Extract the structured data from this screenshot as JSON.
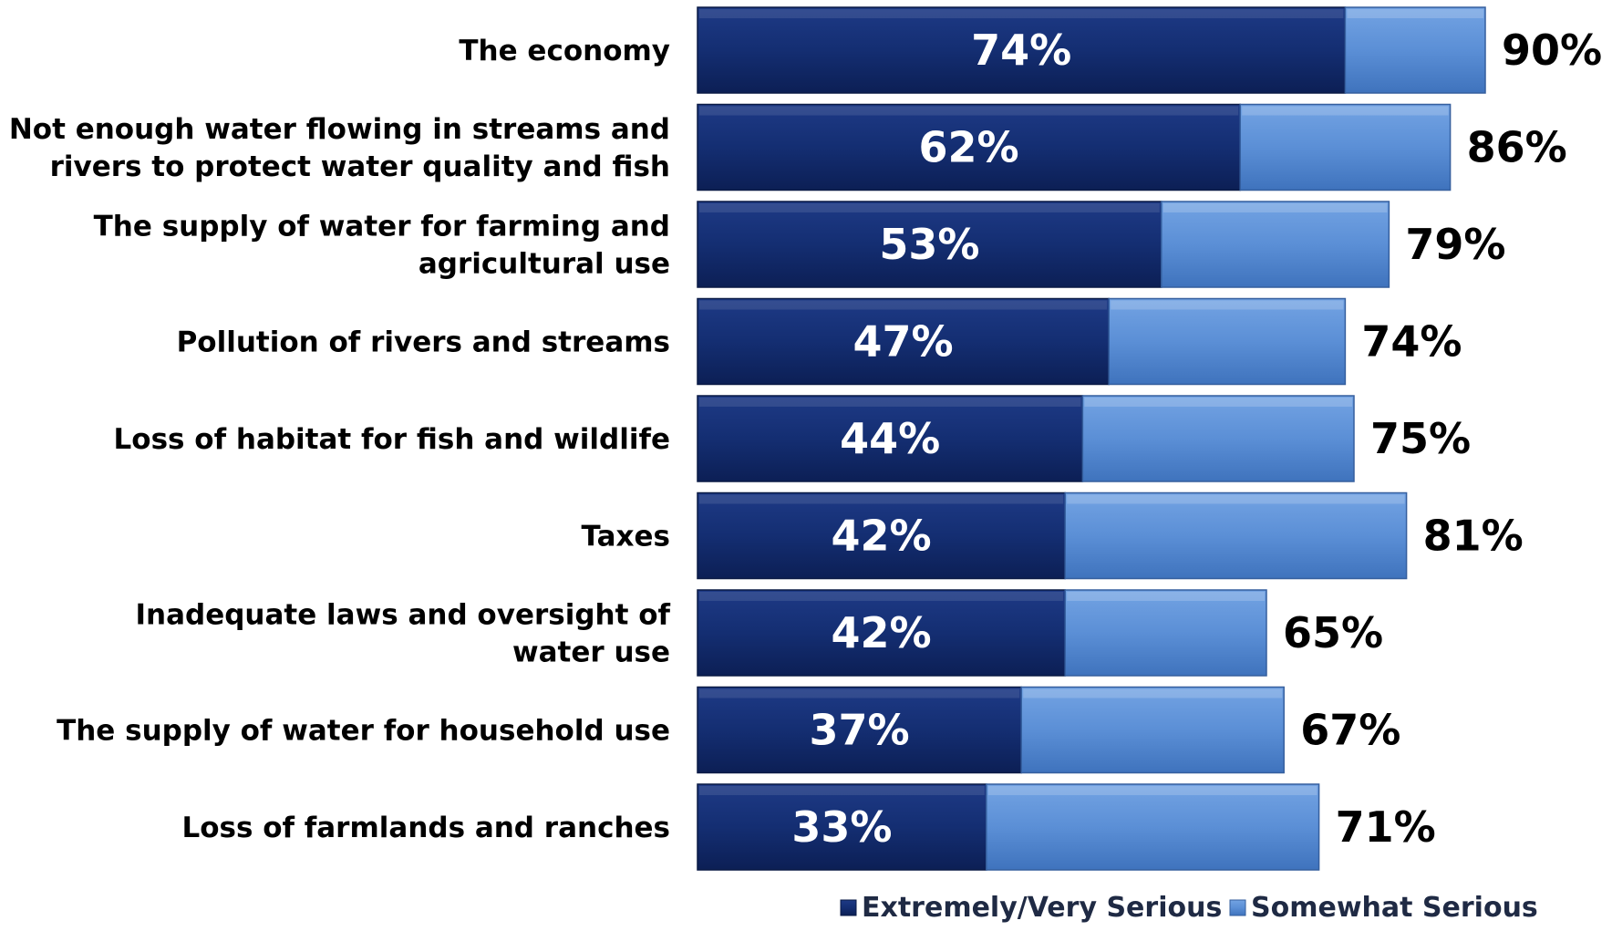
{
  "chart_data": {
    "type": "bar",
    "orientation": "horizontal",
    "stacked": true,
    "categories": [
      [
        "The economy"
      ],
      [
        "Not enough water flowing in streams and",
        "rivers to protect water quality and fish"
      ],
      [
        "The supply of water for farming and",
        "agricultural use"
      ],
      [
        "Pollution of rivers and streams"
      ],
      [
        "Loss of habitat for fish and wildlife"
      ],
      [
        "Taxes"
      ],
      [
        "Inadequate laws and oversight of",
        "water use"
      ],
      [
        "The supply of water for household use"
      ],
      [
        "Loss of farmlands and ranches"
      ]
    ],
    "series": [
      {
        "name": "Extremely/Very Serious",
        "color": "#13296b",
        "values": [
          74,
          62,
          53,
          47,
          44,
          42,
          42,
          37,
          33
        ],
        "labels": [
          "74%",
          "62%",
          "53%",
          "47%",
          "44%",
          "42%",
          "42%",
          "37%",
          "33%"
        ]
      },
      {
        "name": "Somewhat Serious",
        "color": "#5b8fd6",
        "values": [
          16,
          24,
          26,
          27,
          31,
          39,
          23,
          30,
          38
        ]
      }
    ],
    "totals": [
      90,
      86,
      79,
      74,
      75,
      81,
      65,
      67,
      71
    ],
    "total_labels": [
      "90%",
      "86%",
      "79%",
      "74%",
      "75%",
      "81%",
      "65%",
      "67%",
      "71%"
    ],
    "xlim": [
      0,
      100
    ],
    "legend_position": "bottom-right",
    "grid": false,
    "title": "",
    "xlabel": "",
    "ylabel": ""
  }
}
